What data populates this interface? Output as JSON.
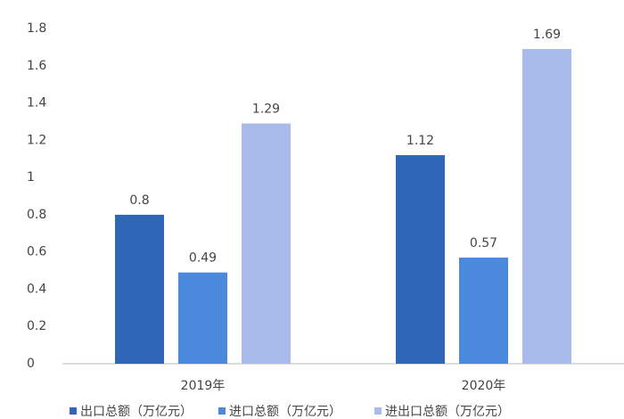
{
  "chart_data": {
    "type": "bar",
    "categories": [
      "2019年",
      "2020年"
    ],
    "series": [
      {
        "name": "出口总额（万亿元）",
        "color": "#2f66b5",
        "values": [
          0.8,
          1.12
        ]
      },
      {
        "name": "进口总额（万亿元）",
        "color": "#4a89dc",
        "values": [
          0.49,
          0.57
        ]
      },
      {
        "name": "进出口总额（万亿元）",
        "color": "#a8bbeb",
        "values": [
          1.29,
          1.69
        ]
      }
    ],
    "ylim": [
      0,
      1.8
    ],
    "yticks": [
      0,
      0.2,
      0.4,
      0.6,
      0.8,
      1,
      1.2,
      1.4,
      1.6,
      1.8
    ],
    "grid": false,
    "legend": "bottom"
  }
}
